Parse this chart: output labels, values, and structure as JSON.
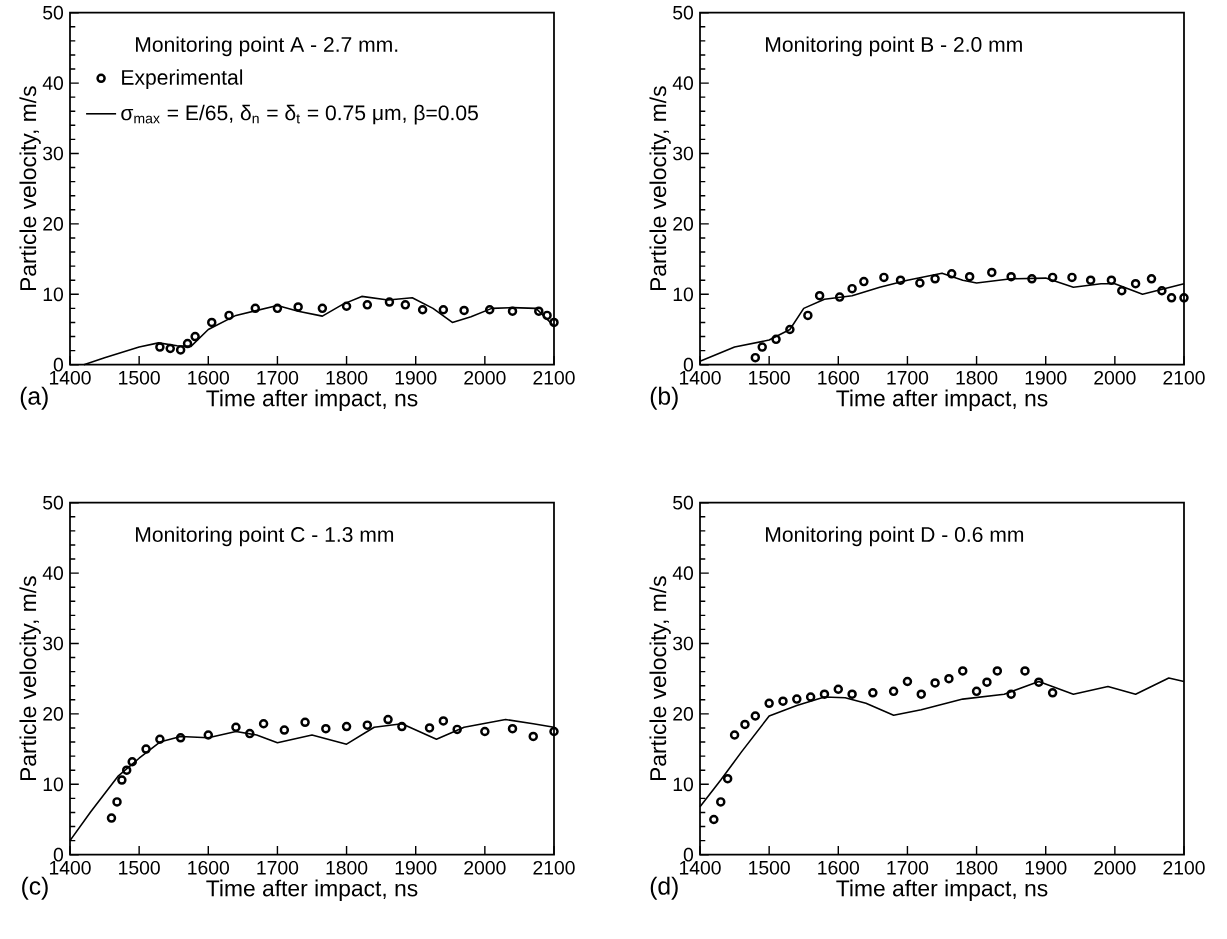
{
  "chart_data": [
    {
      "type": "line",
      "title": "Monitoring point A - 2.7 mm.",
      "xlabel": "Time after impact, ns",
      "ylabel": "Particle velocity, m/s",
      "annotations": [
        "(a)"
      ],
      "legend": "top left",
      "xlim": [
        1400,
        2100
      ],
      "ylim": [
        0,
        50
      ],
      "xticks": [
        1400,
        1500,
        1600,
        1700,
        1800,
        1900,
        2000,
        2100
      ],
      "yticks": [
        0,
        10,
        20,
        30,
        40,
        50
      ],
      "series": [
        {
          "name": "Experimental",
          "type": "scatter",
          "marker": "circle",
          "color": "#000000",
          "x": [
            1530,
            1545,
            1560,
            1570,
            1581,
            1605,
            1630,
            1668,
            1700,
            1730,
            1765,
            1800,
            1830,
            1862,
            1885,
            1910,
            1940,
            1970,
            2007,
            2040,
            2078,
            2090,
            2100
          ],
          "values": [
            2.5,
            2.3,
            2.1,
            3,
            4,
            6,
            7,
            8,
            8,
            8.2,
            8,
            8.3,
            8.5,
            8.9,
            8.5,
            7.8,
            7.8,
            7.7,
            7.8,
            7.6,
            7.6,
            7,
            6
          ]
        },
        {
          "name": "σ$_{max}$ = E/65, δ$_{n}$ = δ$_{t}$ = 0.75 μm, β=0.05",
          "type": "line",
          "color": "#000000",
          "x": [
            1420,
            1450,
            1500,
            1528,
            1555,
            1575,
            1600,
            1640,
            1700,
            1730,
            1765,
            1795,
            1822,
            1860,
            1895,
            1925,
            1953,
            1980,
            2010,
            2040,
            2074,
            2100
          ],
          "values": [
            0,
            1,
            2.5,
            3.1,
            2.7,
            2.6,
            5,
            7,
            8.4,
            7.6,
            6.9,
            8.6,
            9.7,
            9.2,
            9.5,
            8,
            6,
            6.8,
            8,
            8.1,
            8,
            5.5
          ]
        }
      ]
    },
    {
      "type": "line",
      "title": "Monitoring point B - 2.0 mm",
      "xlabel": "Time after impact, ns",
      "ylabel": "Particle velocity, m/s",
      "annotations": [
        "(b)"
      ],
      "xlim": [
        1400,
        2100
      ],
      "ylim": [
        0,
        50
      ],
      "xticks": [
        1400,
        1500,
        1600,
        1700,
        1800,
        1900,
        2000,
        2100
      ],
      "yticks": [
        0,
        10,
        20,
        30,
        40,
        50
      ],
      "series": [
        {
          "type": "scatter",
          "marker": "circle",
          "color": "#000000",
          "x": [
            1480,
            1490,
            1510,
            1530,
            1556,
            1573,
            1602,
            1620,
            1637,
            1666,
            1690,
            1718,
            1740,
            1764,
            1790,
            1822,
            1850,
            1880,
            1910,
            1938,
            1965,
            1995,
            2010,
            2030,
            2053,
            2068,
            2082,
            2100
          ],
          "values": [
            1,
            2.5,
            3.6,
            5,
            7,
            9.8,
            9.6,
            10.8,
            11.8,
            12.4,
            12,
            11.6,
            12.2,
            12.9,
            12.5,
            13.1,
            12.5,
            12.2,
            12.4,
            12.4,
            12,
            12,
            10.5,
            11.5,
            12.2,
            10.5,
            9.5,
            9.5
          ]
        },
        {
          "type": "line",
          "color": "#000000",
          "x": [
            1400,
            1450,
            1500,
            1530,
            1550,
            1580,
            1620,
            1660,
            1700,
            1750,
            1780,
            1800,
            1850,
            1900,
            1940,
            1980,
            2000,
            2040,
            2100
          ],
          "values": [
            0.5,
            2.5,
            3.5,
            5,
            8,
            9.3,
            9.8,
            11,
            12,
            13,
            12,
            11.6,
            12.2,
            12.3,
            11,
            11.5,
            11.5,
            10,
            11.5
          ]
        }
      ]
    },
    {
      "type": "line",
      "title": "Monitoring point C - 1.3 mm",
      "xlabel": "Time after impact, ns",
      "ylabel": "Particle velocity, m/s",
      "annotations": [
        "(c)"
      ],
      "xlim": [
        1400,
        2100
      ],
      "ylim": [
        0,
        50
      ],
      "xticks": [
        1400,
        1500,
        1600,
        1700,
        1800,
        1900,
        2000,
        2100
      ],
      "yticks": [
        0,
        10,
        20,
        30,
        40,
        50
      ],
      "series": [
        {
          "type": "scatter",
          "marker": "circle",
          "color": "#000000",
          "x": [
            1460,
            1468,
            1475,
            1482,
            1490,
            1510,
            1530,
            1560,
            1600,
            1640,
            1660,
            1680,
            1710,
            1740,
            1770,
            1800,
            1830,
            1860,
            1880,
            1920,
            1940,
            1960,
            2000,
            2040,
            2070,
            2100
          ],
          "values": [
            5.2,
            7.5,
            10.6,
            12,
            13.2,
            15,
            16.4,
            16.6,
            17,
            18.1,
            17.2,
            18.6,
            17.7,
            18.8,
            17.9,
            18.2,
            18.4,
            19.2,
            18.2,
            18,
            19,
            17.8,
            17.5,
            17.9,
            16.8,
            17.5
          ]
        },
        {
          "type": "line",
          "color": "#000000",
          "x": [
            1400,
            1430,
            1470,
            1500,
            1530,
            1560,
            1600,
            1640,
            1670,
            1700,
            1750,
            1800,
            1840,
            1880,
            1930,
            1970,
            2030,
            2070,
            2100
          ],
          "values": [
            2,
            6.1,
            11.2,
            13.7,
            16,
            16.8,
            16.6,
            17.5,
            17,
            15.9,
            17,
            15.7,
            18.1,
            18.6,
            16.4,
            18.1,
            19.2,
            18.6,
            18.1
          ]
        }
      ]
    },
    {
      "type": "line",
      "title": "Monitoring point D - 0.6 mm",
      "xlabel": "Time after impact, ns",
      "ylabel": "Particle velocity, m/s",
      "annotations": [
        "(d)"
      ],
      "xlim": [
        1400,
        2100
      ],
      "ylim": [
        0,
        50
      ],
      "xticks": [
        1400,
        1500,
        1600,
        1700,
        1800,
        1900,
        2000,
        2100
      ],
      "yticks": [
        0,
        10,
        20,
        30,
        40,
        50
      ],
      "series": [
        {
          "type": "scatter",
          "marker": "circle",
          "color": "#000000",
          "x": [
            1420,
            1430,
            1440,
            1450,
            1465,
            1480,
            1500,
            1520,
            1540,
            1560,
            1580,
            1600,
            1620,
            1650,
            1680,
            1700,
            1720,
            1740,
            1760,
            1780,
            1800,
            1815,
            1830,
            1850,
            1870,
            1890,
            1910
          ],
          "values": [
            5,
            7.5,
            10.8,
            17,
            18.5,
            19.7,
            21.5,
            21.8,
            22.1,
            22.4,
            22.8,
            23.5,
            22.8,
            23,
            23.2,
            24.6,
            22.8,
            24.4,
            25,
            26.1,
            23.2,
            24.5,
            26.1,
            22.8,
            26.1,
            24.5,
            23
          ]
        },
        {
          "type": "line",
          "color": "#000000",
          "x": [
            1400,
            1430,
            1460,
            1500,
            1540,
            1580,
            1610,
            1640,
            1680,
            1720,
            1780,
            1840,
            1890,
            1940,
            1990,
            2030,
            2078,
            2100
          ],
          "values": [
            6.8,
            10.6,
            14.6,
            19.7,
            21.2,
            22.4,
            22.3,
            21.5,
            19.8,
            20.6,
            22.1,
            22.8,
            24.6,
            22.8,
            23.9,
            22.8,
            25.1,
            24.6
          ]
        }
      ]
    }
  ]
}
